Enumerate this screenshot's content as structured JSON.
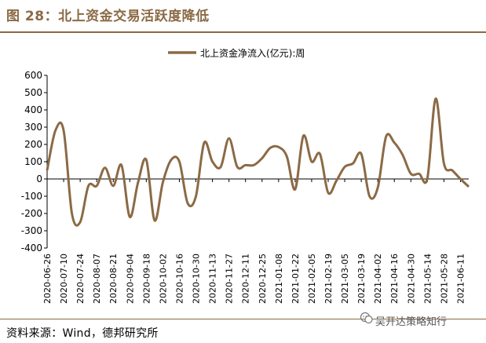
{
  "title": "图 28：北上资金交易活跃度降低",
  "source": "资料来源：Wind，德邦研究所",
  "watermark": "吴开达策略知行",
  "colors": {
    "line": "#8B6A45",
    "title": "#8B6A45",
    "axis": "#000000"
  },
  "chart_data": {
    "type": "line",
    "title": "",
    "xlabel": "",
    "ylabel": "",
    "legend_position": "top-center",
    "grid": false,
    "ylim": [
      -400,
      600
    ],
    "yticks": [
      600,
      500,
      400,
      300,
      200,
      100,
      0,
      -100,
      -200,
      -300,
      -400
    ],
    "xtick_labels": [
      "2020-06-26",
      "2020-07-10",
      "2020-07-24",
      "2020-08-07",
      "2020-08-21",
      "2020-09-04",
      "2020-09-18",
      "2020-10-02",
      "2020-10-16",
      "2020-10-30",
      "2020-11-13",
      "2020-11-27",
      "2020-12-11",
      "2020-12-25",
      "2021-01-08",
      "2021-01-22",
      "2021-02-05",
      "2021-02-19",
      "2021-03-05",
      "2021-03-19",
      "2021-04-02",
      "2021-04-16",
      "2021-04-30",
      "2021-05-14",
      "2021-05-28",
      "2021-06-11"
    ],
    "series": [
      {
        "name": "北上资金净流入(亿元):周",
        "x": [
          "2020-06-26",
          "2020-07-03",
          "2020-07-10",
          "2020-07-17",
          "2020-07-24",
          "2020-07-31",
          "2020-08-07",
          "2020-08-14",
          "2020-08-21",
          "2020-08-28",
          "2020-09-04",
          "2020-09-11",
          "2020-09-18",
          "2020-09-25",
          "2020-10-02",
          "2020-10-09",
          "2020-10-16",
          "2020-10-23",
          "2020-10-30",
          "2020-11-06",
          "2020-11-13",
          "2020-11-20",
          "2020-11-27",
          "2020-12-04",
          "2020-12-11",
          "2020-12-18",
          "2020-12-25",
          "2021-01-01",
          "2021-01-08",
          "2021-01-15",
          "2021-01-22",
          "2021-01-29",
          "2021-02-05",
          "2021-02-12",
          "2021-02-19",
          "2021-02-26",
          "2021-03-05",
          "2021-03-12",
          "2021-03-19",
          "2021-03-26",
          "2021-04-02",
          "2021-04-09",
          "2021-04-16",
          "2021-04-23",
          "2021-04-30",
          "2021-05-07",
          "2021-05-14",
          "2021-05-21",
          "2021-05-28",
          "2021-06-04",
          "2021-06-11",
          "2021-06-18"
        ],
        "values": [
          50,
          280,
          280,
          -200,
          -250,
          -40,
          -40,
          65,
          -40,
          80,
          -220,
          -20,
          110,
          -240,
          -20,
          110,
          100,
          -140,
          -100,
          210,
          100,
          70,
          235,
          70,
          80,
          80,
          120,
          180,
          185,
          130,
          -60,
          250,
          100,
          145,
          -80,
          -10,
          70,
          90,
          145,
          -100,
          -50,
          245,
          210,
          140,
          30,
          30,
          5,
          465,
          90,
          50,
          0,
          -45
        ]
      }
    ]
  }
}
